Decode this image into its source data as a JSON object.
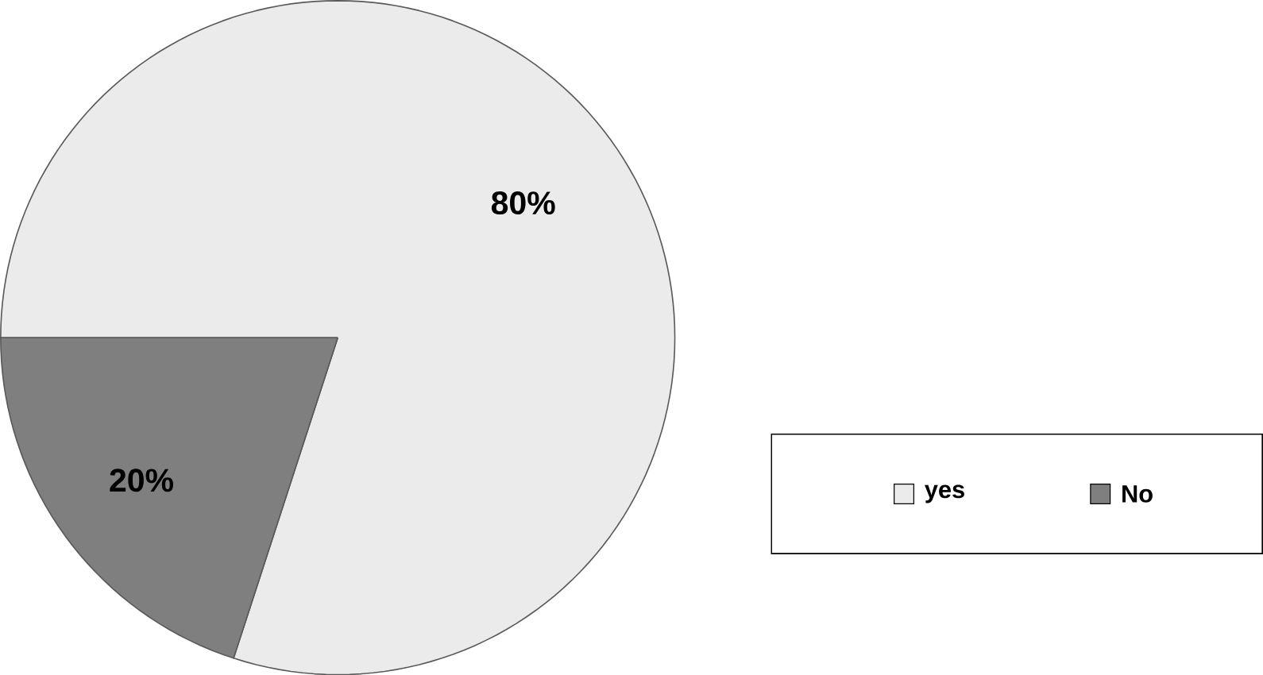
{
  "chart_data": {
    "type": "pie",
    "categories": [
      "yes",
      "No"
    ],
    "values": [
      80,
      20
    ],
    "colors": [
      "#ebebeb",
      "#7f7f7f"
    ],
    "value_labels": [
      "80%",
      "20%"
    ],
    "legend": "bottom right"
  }
}
